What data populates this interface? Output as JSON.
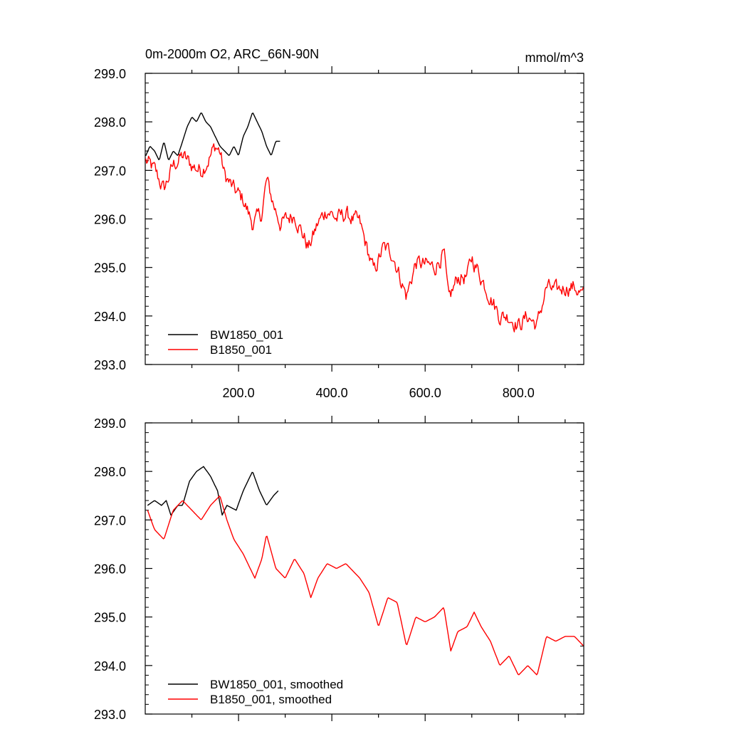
{
  "figure": {
    "title_left": "0m-2000m O2, ARC_66N-90N",
    "title_right": "mmol/m^3"
  },
  "chart_data": [
    {
      "type": "line",
      "panel": "top",
      "xlim": [
        0,
        940
      ],
      "ylim": [
        293.0,
        299.0
      ],
      "yticks": [
        "299.0",
        "298.0",
        "297.0",
        "296.0",
        "295.0",
        "294.0",
        "293.0"
      ],
      "xticks": [
        "200.0",
        "400.0",
        "600.0",
        "800.0"
      ],
      "grid": false,
      "legend_position": "bottom-left",
      "series": [
        {
          "name": "BW1850_001",
          "color": "#000000",
          "key": [
            [
              1,
              297.3
            ],
            [
              10,
              297.5
            ],
            [
              20,
              297.4
            ],
            [
              30,
              297.2
            ],
            [
              40,
              297.6
            ],
            [
              50,
              297.2
            ],
            [
              60,
              297.4
            ],
            [
              70,
              297.3
            ],
            [
              80,
              297.6
            ],
            [
              90,
              297.9
            ],
            [
              100,
              298.1
            ],
            [
              110,
              298.0
            ],
            [
              120,
              298.2
            ],
            [
              130,
              298.0
            ],
            [
              140,
              297.9
            ],
            [
              150,
              297.7
            ],
            [
              160,
              297.5
            ],
            [
              170,
              297.4
            ],
            [
              180,
              297.3
            ],
            [
              190,
              297.5
            ],
            [
              200,
              297.3
            ],
            [
              210,
              297.7
            ],
            [
              220,
              297.9
            ],
            [
              230,
              298.2
            ],
            [
              240,
              298.0
            ],
            [
              250,
              297.8
            ],
            [
              260,
              297.5
            ],
            [
              270,
              297.3
            ],
            [
              280,
              297.6
            ],
            [
              290,
              297.6
            ]
          ]
        },
        {
          "name": "B1850_001",
          "color": "#ff0000",
          "key": [
            [
              1,
              297.2
            ],
            [
              20,
              297.0
            ],
            [
              40,
              296.6
            ],
            [
              60,
              297.1
            ],
            [
              80,
              297.3
            ],
            [
              100,
              297.1
            ],
            [
              120,
              297.0
            ],
            [
              140,
              297.3
            ],
            [
              150,
              297.5
            ],
            [
              160,
              297.4
            ],
            [
              170,
              296.9
            ],
            [
              190,
              296.6
            ],
            [
              210,
              296.4
            ],
            [
              230,
              295.9
            ],
            [
              250,
              296.1
            ],
            [
              260,
              296.8
            ],
            [
              275,
              296.3
            ],
            [
              290,
              295.9
            ],
            [
              320,
              296.1
            ],
            [
              350,
              295.4
            ],
            [
              370,
              295.9
            ],
            [
              390,
              296.2
            ],
            [
              410,
              296.0
            ],
            [
              430,
              296.1
            ],
            [
              460,
              295.9
            ],
            [
              490,
              294.9
            ],
            [
              510,
              295.4
            ],
            [
              530,
              295.3
            ],
            [
              560,
              294.4
            ],
            [
              580,
              295.1
            ],
            [
              620,
              295.0
            ],
            [
              640,
              295.3
            ],
            [
              650,
              294.3
            ],
            [
              670,
              294.8
            ],
            [
              690,
              294.8
            ],
            [
              700,
              295.2
            ],
            [
              720,
              294.8
            ],
            [
              760,
              294.0
            ],
            [
              780,
              294.0
            ],
            [
              800,
              293.8
            ],
            [
              820,
              294.0
            ],
            [
              840,
              293.8
            ],
            [
              860,
              294.6
            ],
            [
              880,
              294.5
            ],
            [
              900,
              294.6
            ],
            [
              920,
              294.6
            ],
            [
              940,
              294.4
            ]
          ],
          "noise": 0.18
        }
      ]
    },
    {
      "type": "line",
      "panel": "bottom",
      "xlim": [
        0,
        940
      ],
      "ylim": [
        293.0,
        299.0
      ],
      "yticks": [
        "299.0",
        "298.0",
        "297.0",
        "296.0",
        "295.0",
        "294.0",
        "293.0"
      ],
      "grid": false,
      "legend_position": "bottom-left",
      "series": [
        {
          "name": "BW1850_001, smoothed",
          "color": "#000000",
          "key": [
            [
              5,
              297.3
            ],
            [
              20,
              297.4
            ],
            [
              35,
              297.3
            ],
            [
              45,
              297.4
            ],
            [
              55,
              297.1
            ],
            [
              70,
              297.3
            ],
            [
              80,
              297.3
            ],
            [
              95,
              297.8
            ],
            [
              110,
              298.0
            ],
            [
              125,
              298.1
            ],
            [
              140,
              297.9
            ],
            [
              155,
              297.6
            ],
            [
              165,
              297.1
            ],
            [
              175,
              297.3
            ],
            [
              195,
              297.2
            ],
            [
              210,
              297.6
            ],
            [
              230,
              298.0
            ],
            [
              245,
              297.6
            ],
            [
              260,
              297.3
            ],
            [
              275,
              297.5
            ],
            [
              285,
              297.6
            ]
          ]
        },
        {
          "name": "B1850_001, smoothed",
          "color": "#ff0000",
          "key": [
            [
              5,
              297.2
            ],
            [
              20,
              296.8
            ],
            [
              40,
              296.6
            ],
            [
              60,
              297.2
            ],
            [
              80,
              297.4
            ],
            [
              100,
              297.2
            ],
            [
              120,
              297.0
            ],
            [
              140,
              297.3
            ],
            [
              160,
              297.5
            ],
            [
              175,
              297.0
            ],
            [
              190,
              296.6
            ],
            [
              210,
              296.3
            ],
            [
              235,
              295.8
            ],
            [
              250,
              296.2
            ],
            [
              260,
              296.7
            ],
            [
              280,
              296.0
            ],
            [
              300,
              295.8
            ],
            [
              320,
              296.2
            ],
            [
              340,
              295.9
            ],
            [
              355,
              295.4
            ],
            [
              370,
              295.8
            ],
            [
              390,
              296.1
            ],
            [
              410,
              296.0
            ],
            [
              430,
              296.1
            ],
            [
              460,
              295.8
            ],
            [
              480,
              295.5
            ],
            [
              500,
              294.8
            ],
            [
              520,
              295.4
            ],
            [
              540,
              295.3
            ],
            [
              560,
              294.4
            ],
            [
              580,
              295.0
            ],
            [
              600,
              294.9
            ],
            [
              620,
              295.0
            ],
            [
              640,
              295.2
            ],
            [
              655,
              294.3
            ],
            [
              670,
              294.7
            ],
            [
              690,
              294.8
            ],
            [
              705,
              295.1
            ],
            [
              720,
              294.8
            ],
            [
              740,
              294.5
            ],
            [
              760,
              294.0
            ],
            [
              780,
              294.2
            ],
            [
              800,
              293.8
            ],
            [
              820,
              294.0
            ],
            [
              840,
              293.8
            ],
            [
              860,
              294.6
            ],
            [
              880,
              294.5
            ],
            [
              900,
              294.6
            ],
            [
              920,
              294.6
            ],
            [
              940,
              294.4
            ]
          ]
        }
      ]
    }
  ]
}
